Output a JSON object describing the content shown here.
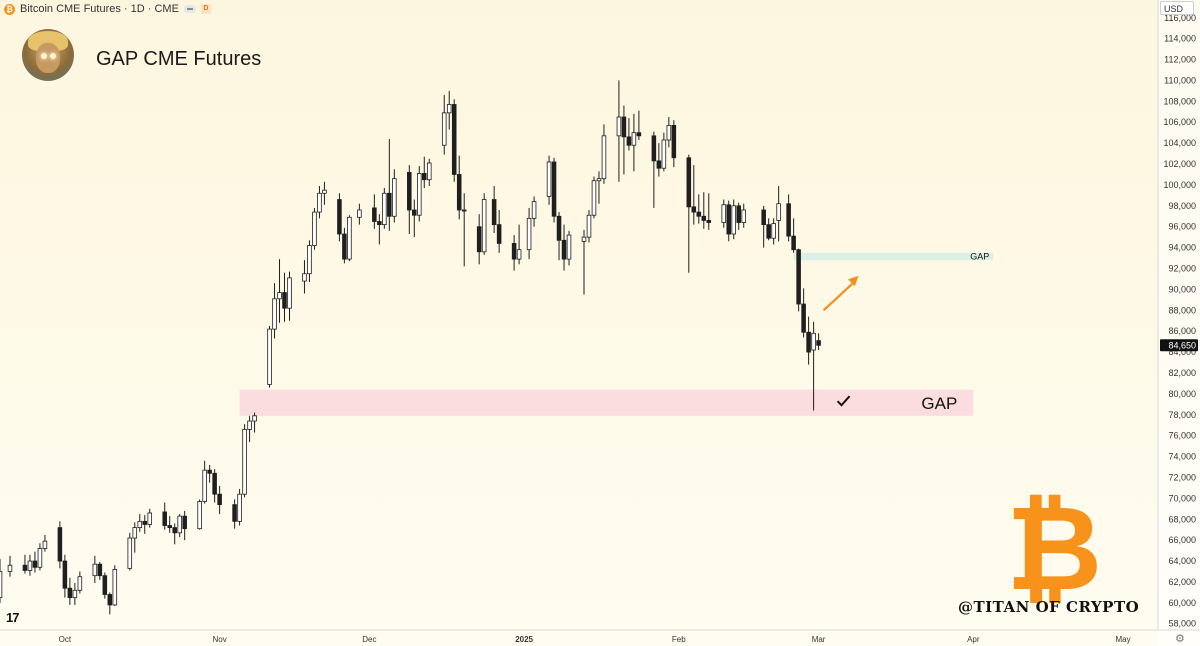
{
  "header": {
    "symbol": "Bitcoin CME Futures · 1D · CME",
    "badge": "D",
    "title": "GAP CME Futures",
    "currency": "USD"
  },
  "icons": {
    "symbol": "bitcoin-coin-icon",
    "tv": "tradingview-logo-icon",
    "settings": "gear-icon",
    "check": "checkmark-icon",
    "arrow": "up-arrow-icon"
  },
  "tv_logo": "17",
  "watermark": "@TITAN OF CRYPTO",
  "btc_logo": "₿",
  "colors": {
    "up": "#ffffff",
    "down": "#1f1f1f",
    "wick": "#1f1f1f",
    "gap_low": "#fbd9de",
    "gap_high": "#d7efe8",
    "arrow": "#f0911e",
    "brand": "#f7931a"
  },
  "chart_data": {
    "type": "candlestick",
    "ylim": [
      57400,
      117700
    ],
    "yticks": [
      58000,
      60000,
      62000,
      64000,
      66000,
      68000,
      70000,
      72000,
      74000,
      76000,
      78000,
      80000,
      82000,
      84000,
      86000,
      88000,
      90000,
      92000,
      94000,
      96000,
      98000,
      100000,
      102000,
      104000,
      106000,
      108000,
      110000,
      112000,
      114000,
      116000
    ],
    "ytick_labels": [
      "58,000",
      "60,000",
      "62,000",
      "64,000",
      "66,000",
      "68,000",
      "70,000",
      "72,000",
      "74,000",
      "76,000",
      "78,000",
      "80,000",
      "82,000",
      "84,000",
      "86,000",
      "88,000",
      "90,000",
      "92,000",
      "94,000",
      "96,000",
      "98,000",
      "100,000",
      "102,000",
      "104,000",
      "106,000",
      "108,000",
      "110,000",
      "112,000",
      "114,000",
      "116,000"
    ],
    "xlim": [
      "2024-09-18",
      "2025-05-08"
    ],
    "xticks": [
      {
        "date": "2024-10-01",
        "label": "Oct",
        "bold": false
      },
      {
        "date": "2024-11-01",
        "label": "Nov",
        "bold": false
      },
      {
        "date": "2024-12-01",
        "label": "Dec",
        "bold": false
      },
      {
        "date": "2025-01-01",
        "label": "2025",
        "bold": true
      },
      {
        "date": "2025-02-01",
        "label": "Feb",
        "bold": false
      },
      {
        "date": "2025-03-01",
        "label": "Mar",
        "bold": false
      },
      {
        "date": "2025-04-01",
        "label": "Apr",
        "bold": false
      },
      {
        "date": "2025-05-01",
        "label": "May",
        "bold": false
      }
    ],
    "last_price": 84650,
    "last_price_label": "84,650",
    "zones": [
      {
        "label": "GAP",
        "from": "2024-11-05",
        "to": "2025-04-01",
        "low": 77900,
        "high": 80400,
        "style": "low"
      },
      {
        "label": "GAP",
        "from": "2025-02-24",
        "to": "2025-04-05",
        "low": 92800,
        "high": 93500,
        "style": "high"
      }
    ],
    "candles": [
      {
        "d": "2024-09-18",
        "o": 60500,
        "h": 64200,
        "l": 60000,
        "c": 63000
      },
      {
        "d": "2024-09-20",
        "o": 63000,
        "h": 64500,
        "l": 62500,
        "c": 63600
      },
      {
        "d": "2024-09-23",
        "o": 63600,
        "h": 64600,
        "l": 62800,
        "c": 63100
      },
      {
        "d": "2024-09-24",
        "o": 63100,
        "h": 64600,
        "l": 62600,
        "c": 64000
      },
      {
        "d": "2024-09-25",
        "o": 64000,
        "h": 64900,
        "l": 62900,
        "c": 63400
      },
      {
        "d": "2024-09-26",
        "o": 63400,
        "h": 65700,
        "l": 63100,
        "c": 65200
      },
      {
        "d": "2024-09-27",
        "o": 65200,
        "h": 66500,
        "l": 64900,
        "c": 65900
      },
      {
        "d": "2024-09-30",
        "o": 67200,
        "h": 67800,
        "l": 63300,
        "c": 64000
      },
      {
        "d": "2024-10-01",
        "o": 64000,
        "h": 64600,
        "l": 60500,
        "c": 61400
      },
      {
        "d": "2024-10-02",
        "o": 61400,
        "h": 62400,
        "l": 59800,
        "c": 60500
      },
      {
        "d": "2024-10-03",
        "o": 60500,
        "h": 61900,
        "l": 59800,
        "c": 61200
      },
      {
        "d": "2024-10-04",
        "o": 61200,
        "h": 63000,
        "l": 60900,
        "c": 62500
      },
      {
        "d": "2024-10-07",
        "o": 62600,
        "h": 64500,
        "l": 61900,
        "c": 63700
      },
      {
        "d": "2024-10-08",
        "o": 63700,
        "h": 63900,
        "l": 62200,
        "c": 62600
      },
      {
        "d": "2024-10-09",
        "o": 62600,
        "h": 62900,
        "l": 60400,
        "c": 60800
      },
      {
        "d": "2024-10-10",
        "o": 60800,
        "h": 61000,
        "l": 58900,
        "c": 59800
      },
      {
        "d": "2024-10-11",
        "o": 59800,
        "h": 63600,
        "l": 59700,
        "c": 63200
      },
      {
        "d": "2024-10-14",
        "o": 63300,
        "h": 66700,
        "l": 63100,
        "c": 66200
      },
      {
        "d": "2024-10-15",
        "o": 66200,
        "h": 67700,
        "l": 64800,
        "c": 67200
      },
      {
        "d": "2024-10-16",
        "o": 67200,
        "h": 68500,
        "l": 66800,
        "c": 67800
      },
      {
        "d": "2024-10-17",
        "o": 67800,
        "h": 68400,
        "l": 66600,
        "c": 67500
      },
      {
        "d": "2024-10-18",
        "o": 67500,
        "h": 69000,
        "l": 67200,
        "c": 68600
      },
      {
        "d": "2024-10-21",
        "o": 68700,
        "h": 69600,
        "l": 67000,
        "c": 67400
      },
      {
        "d": "2024-10-22",
        "o": 67400,
        "h": 68300,
        "l": 66700,
        "c": 67200
      },
      {
        "d": "2024-10-23",
        "o": 67200,
        "h": 67600,
        "l": 65600,
        "c": 66700
      },
      {
        "d": "2024-10-24",
        "o": 66700,
        "h": 68500,
        "l": 66300,
        "c": 68300
      },
      {
        "d": "2024-10-25",
        "o": 68300,
        "h": 68800,
        "l": 66000,
        "c": 67100
      },
      {
        "d": "2024-10-28",
        "o": 67100,
        "h": 69900,
        "l": 67000,
        "c": 69700
      },
      {
        "d": "2024-10-29",
        "o": 69700,
        "h": 73600,
        "l": 69500,
        "c": 72700
      },
      {
        "d": "2024-10-30",
        "o": 72700,
        "h": 73200,
        "l": 71500,
        "c": 72400
      },
      {
        "d": "2024-10-31",
        "o": 72400,
        "h": 72800,
        "l": 69600,
        "c": 70400
      },
      {
        "d": "2024-11-01",
        "o": 70400,
        "h": 71200,
        "l": 68500,
        "c": 69400
      },
      {
        "d": "2024-11-04",
        "o": 69400,
        "h": 69900,
        "l": 67100,
        "c": 67800
      },
      {
        "d": "2024-11-05",
        "o": 67800,
        "h": 70900,
        "l": 67400,
        "c": 70400
      },
      {
        "d": "2024-11-06",
        "o": 70400,
        "h": 77100,
        "l": 70100,
        "c": 76600
      },
      {
        "d": "2024-11-07",
        "o": 76600,
        "h": 77900,
        "l": 75400,
        "c": 77400
      },
      {
        "d": "2024-11-08",
        "o": 77400,
        "h": 78200,
        "l": 76300,
        "c": 77900
      },
      {
        "d": "2024-11-11",
        "o": 80900,
        "h": 86500,
        "l": 80600,
        "c": 86200
      },
      {
        "d": "2024-11-12",
        "o": 86200,
        "h": 90600,
        "l": 85300,
        "c": 89100
      },
      {
        "d": "2024-11-13",
        "o": 89100,
        "h": 92900,
        "l": 86800,
        "c": 89700
      },
      {
        "d": "2024-11-14",
        "o": 89700,
        "h": 91600,
        "l": 86900,
        "c": 88200
      },
      {
        "d": "2024-11-15",
        "o": 88200,
        "h": 91700,
        "l": 87000,
        "c": 91100
      },
      {
        "d": "2024-11-18",
        "o": 90800,
        "h": 92800,
        "l": 89600,
        "c": 91500
      },
      {
        "d": "2024-11-19",
        "o": 91500,
        "h": 94700,
        "l": 90700,
        "c": 94200
      },
      {
        "d": "2024-11-20",
        "o": 94200,
        "h": 97800,
        "l": 93800,
        "c": 97400
      },
      {
        "d": "2024-11-21",
        "o": 97400,
        "h": 99900,
        "l": 96800,
        "c": 99200
      },
      {
        "d": "2024-11-22",
        "o": 99200,
        "h": 100300,
        "l": 98100,
        "c": 99500
      },
      {
        "d": "2024-11-25",
        "o": 98600,
        "h": 99200,
        "l": 94600,
        "c": 95300
      },
      {
        "d": "2024-11-26",
        "o": 95300,
        "h": 95900,
        "l": 92500,
        "c": 92900
      },
      {
        "d": "2024-11-27",
        "o": 92900,
        "h": 97100,
        "l": 92700,
        "c": 96900
      },
      {
        "d": "2024-11-29",
        "o": 96900,
        "h": 98200,
        "l": 96200,
        "c": 97600
      },
      {
        "d": "2024-12-02",
        "o": 97800,
        "h": 99100,
        "l": 95800,
        "c": 96500
      },
      {
        "d": "2024-12-03",
        "o": 96500,
        "h": 97200,
        "l": 94300,
        "c": 96200
      },
      {
        "d": "2024-12-04",
        "o": 96200,
        "h": 99700,
        "l": 95800,
        "c": 99200
      },
      {
        "d": "2024-12-05",
        "o": 99200,
        "h": 104400,
        "l": 95600,
        "c": 97000
      },
      {
        "d": "2024-12-06",
        "o": 97000,
        "h": 101500,
        "l": 96400,
        "c": 100600
      },
      {
        "d": "2024-12-09",
        "o": 101200,
        "h": 101900,
        "l": 95300,
        "c": 97600
      },
      {
        "d": "2024-12-10",
        "o": 97600,
        "h": 98600,
        "l": 95000,
        "c": 97100
      },
      {
        "d": "2024-12-11",
        "o": 97100,
        "h": 101800,
        "l": 96500,
        "c": 101100
      },
      {
        "d": "2024-12-12",
        "o": 101100,
        "h": 102700,
        "l": 99700,
        "c": 100500
      },
      {
        "d": "2024-12-13",
        "o": 100500,
        "h": 102500,
        "l": 99900,
        "c": 102100
      },
      {
        "d": "2024-12-16",
        "o": 103800,
        "h": 108600,
        "l": 102900,
        "c": 106900
      },
      {
        "d": "2024-12-17",
        "o": 106900,
        "h": 109000,
        "l": 105300,
        "c": 107700
      },
      {
        "d": "2024-12-18",
        "o": 107700,
        "h": 108200,
        "l": 100300,
        "c": 101000
      },
      {
        "d": "2024-12-19",
        "o": 101000,
        "h": 102800,
        "l": 96700,
        "c": 97600
      },
      {
        "d": "2024-12-20",
        "o": 97600,
        "h": 99200,
        "l": 92200,
        "c": 97500
      },
      {
        "d": "2024-12-23",
        "o": 96000,
        "h": 97200,
        "l": 92400,
        "c": 93600
      },
      {
        "d": "2024-12-24",
        "o": 93600,
        "h": 99200,
        "l": 93300,
        "c": 98600
      },
      {
        "d": "2024-12-26",
        "o": 98600,
        "h": 99900,
        "l": 95400,
        "c": 96200
      },
      {
        "d": "2024-12-27",
        "o": 96200,
        "h": 97600,
        "l": 93500,
        "c": 94400
      },
      {
        "d": "2024-12-30",
        "o": 94400,
        "h": 95200,
        "l": 91800,
        "c": 92900
      },
      {
        "d": "2024-12-31",
        "o": 92900,
        "h": 96200,
        "l": 92400,
        "c": 93800
      },
      {
        "d": "2025-01-02",
        "o": 93800,
        "h": 97800,
        "l": 92900,
        "c": 96800
      },
      {
        "d": "2025-01-03",
        "o": 96800,
        "h": 98900,
        "l": 96000,
        "c": 98400
      },
      {
        "d": "2025-01-06",
        "o": 98900,
        "h": 102800,
        "l": 98100,
        "c": 102200
      },
      {
        "d": "2025-01-07",
        "o": 102200,
        "h": 102600,
        "l": 96400,
        "c": 97000
      },
      {
        "d": "2025-01-08",
        "o": 97000,
        "h": 97400,
        "l": 92800,
        "c": 94700
      },
      {
        "d": "2025-01-09",
        "o": 94700,
        "h": 96200,
        "l": 91800,
        "c": 92900
      },
      {
        "d": "2025-01-10",
        "o": 92900,
        "h": 95600,
        "l": 92300,
        "c": 95200
      },
      {
        "d": "2025-01-13",
        "o": 94600,
        "h": 95700,
        "l": 89500,
        "c": 95000
      },
      {
        "d": "2025-01-14",
        "o": 95000,
        "h": 97600,
        "l": 94500,
        "c": 97100
      },
      {
        "d": "2025-01-15",
        "o": 97100,
        "h": 100800,
        "l": 96800,
        "c": 100400
      },
      {
        "d": "2025-01-16",
        "o": 100400,
        "h": 101300,
        "l": 98200,
        "c": 100600
      },
      {
        "d": "2025-01-17",
        "o": 100600,
        "h": 105800,
        "l": 100100,
        "c": 104700
      },
      {
        "d": "2025-01-20",
        "o": 104700,
        "h": 110000,
        "l": 100300,
        "c": 106500
      },
      {
        "d": "2025-01-21",
        "o": 106500,
        "h": 107600,
        "l": 101000,
        "c": 104600
      },
      {
        "d": "2025-01-22",
        "o": 104600,
        "h": 106400,
        "l": 103300,
        "c": 103800
      },
      {
        "d": "2025-01-23",
        "o": 103800,
        "h": 106800,
        "l": 101300,
        "c": 105000
      },
      {
        "d": "2025-01-24",
        "o": 105000,
        "h": 107100,
        "l": 104300,
        "c": 104700
      },
      {
        "d": "2025-01-27",
        "o": 104700,
        "h": 105100,
        "l": 97800,
        "c": 102300
      },
      {
        "d": "2025-01-28",
        "o": 102300,
        "h": 104000,
        "l": 100800,
        "c": 101600
      },
      {
        "d": "2025-01-29",
        "o": 101600,
        "h": 105000,
        "l": 101300,
        "c": 104300
      },
      {
        "d": "2025-01-30",
        "o": 104300,
        "h": 106500,
        "l": 103600,
        "c": 105700
      },
      {
        "d": "2025-01-31",
        "o": 105700,
        "h": 106200,
        "l": 101700,
        "c": 102600
      },
      {
        "d": "2025-02-03",
        "o": 102600,
        "h": 102900,
        "l": 91600,
        "c": 97900
      },
      {
        "d": "2025-02-04",
        "o": 97900,
        "h": 101900,
        "l": 96200,
        "c": 97400
      },
      {
        "d": "2025-02-05",
        "o": 97400,
        "h": 99100,
        "l": 96300,
        "c": 97000
      },
      {
        "d": "2025-02-06",
        "o": 97000,
        "h": 99300,
        "l": 95800,
        "c": 96600
      },
      {
        "d": "2025-02-07",
        "o": 96600,
        "h": 99200,
        "l": 95700,
        "c": 96400
      },
      {
        "d": "2025-02-10",
        "o": 96400,
        "h": 98600,
        "l": 95900,
        "c": 98100
      },
      {
        "d": "2025-02-11",
        "o": 98100,
        "h": 98500,
        "l": 94600,
        "c": 95300
      },
      {
        "d": "2025-02-12",
        "o": 95300,
        "h": 98600,
        "l": 94800,
        "c": 98000
      },
      {
        "d": "2025-02-13",
        "o": 98000,
        "h": 98300,
        "l": 95700,
        "c": 96400
      },
      {
        "d": "2025-02-14",
        "o": 96400,
        "h": 98200,
        "l": 95900,
        "c": 97600
      },
      {
        "d": "2025-02-18",
        "o": 97600,
        "h": 98000,
        "l": 94000,
        "c": 96200
      },
      {
        "d": "2025-02-19",
        "o": 96200,
        "h": 96800,
        "l": 94700,
        "c": 94900
      },
      {
        "d": "2025-02-20",
        "o": 94900,
        "h": 96800,
        "l": 94300,
        "c": 96300
      },
      {
        "d": "2025-02-21",
        "o": 96600,
        "h": 99900,
        "l": 94600,
        "c": 98200
      },
      {
        "d": "2025-02-23",
        "o": 98200,
        "h": 99100,
        "l": 94600,
        "c": 95100
      },
      {
        "d": "2025-02-24",
        "o": 95100,
        "h": 96800,
        "l": 93500,
        "c": 93800
      },
      {
        "d": "2025-02-25",
        "o": 93800,
        "h": 93900,
        "l": 87900,
        "c": 88600
      },
      {
        "d": "2025-02-26",
        "o": 88600,
        "h": 90100,
        "l": 85400,
        "c": 85900
      },
      {
        "d": "2025-02-27",
        "o": 85900,
        "h": 87400,
        "l": 82800,
        "c": 84000
      },
      {
        "d": "2025-02-28",
        "o": 84200,
        "h": 86900,
        "l": 78400,
        "c": 85800
      },
      {
        "d": "2025-03-01",
        "o": 85100,
        "h": 85800,
        "l": 84200,
        "c": 84650
      }
    ],
    "arrow": {
      "from": {
        "d": "2025-03-02",
        "v": 88000
      },
      "to": {
        "d": "2025-03-09",
        "v": 91300
      }
    },
    "check": {
      "d": "2025-03-06",
      "v": 79300
    }
  }
}
